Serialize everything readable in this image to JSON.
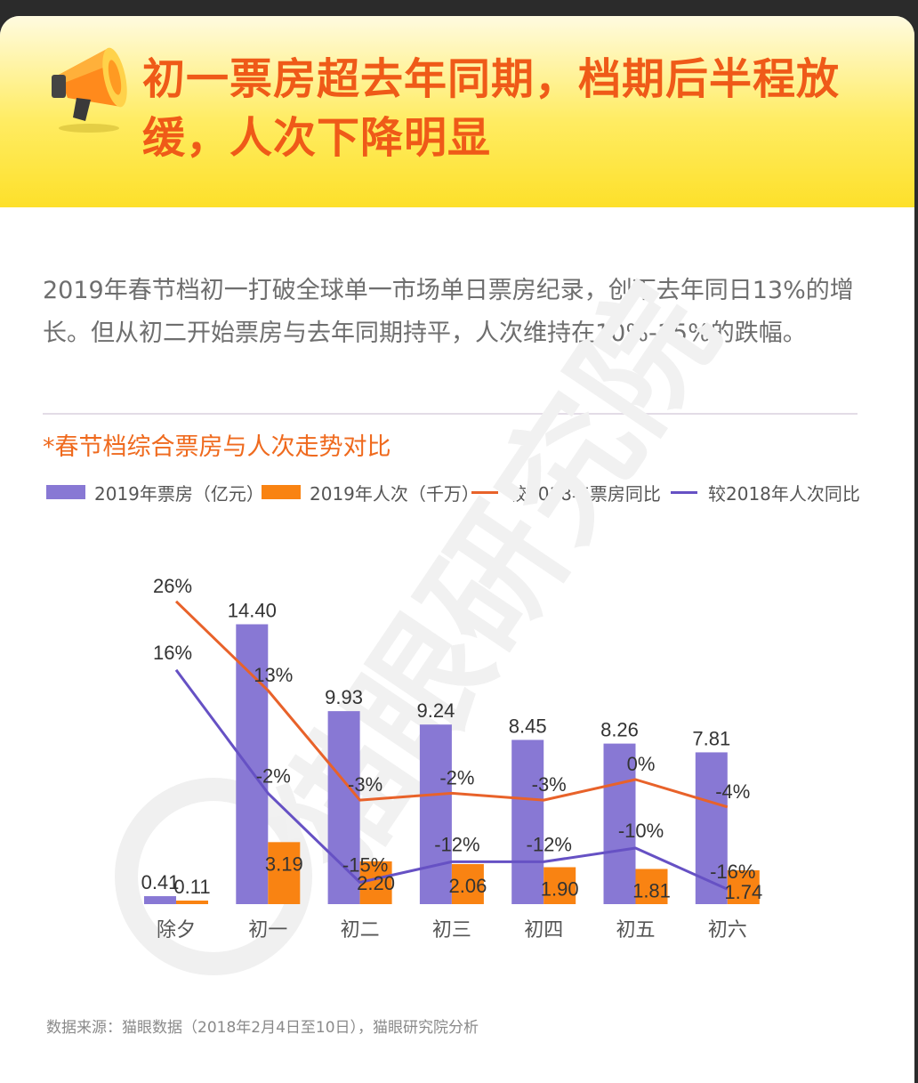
{
  "title": "初一票房超去年同期，档期后半程放缓，人次下降明显",
  "description": "2019年春节档初一打破全球单一市场单日票房纪录，创下去年同日13%的增长。但从初二开始票房与去年同期持平，人次维持在10%-15%的跌幅。",
  "watermark": "猫眼研究院",
  "source": "数据来源：猫眼数据（2018年2月4日至10日），猫眼研究院分析",
  "colors": {
    "box_office_bar": "#8878d4",
    "admissions_bar": "#f98312",
    "box_yoy_line": "#e8622a",
    "adm_yoy_line": "#6651c4",
    "title": "#ef5a18"
  },
  "chart_data": {
    "type": "bar",
    "title": "*春节档综合票房与人次走势对比",
    "categories": [
      "除夕",
      "初一",
      "初二",
      "初三",
      "初四",
      "初五",
      "初六"
    ],
    "series": [
      {
        "name": "2019年票房（亿元）",
        "type": "bar",
        "values": [
          0.41,
          14.4,
          9.93,
          9.24,
          8.45,
          8.26,
          7.81
        ],
        "labels": [
          "0.41",
          "14.40",
          "9.93",
          "9.24",
          "8.45",
          "8.26",
          "7.81"
        ]
      },
      {
        "name": "2019年人次（千万）",
        "type": "bar",
        "values": [
          0.11,
          3.19,
          2.2,
          2.06,
          1.9,
          1.81,
          1.74
        ],
        "labels": [
          "0.11",
          "3.19",
          "2.20",
          "2.06",
          "1.90",
          "1.81",
          "1.74"
        ]
      },
      {
        "name": "较2018年票房同比",
        "type": "line",
        "values": [
          26,
          13,
          -3,
          -2,
          -3,
          0,
          -4
        ],
        "labels": [
          "26%",
          "13%",
          "-3%",
          "-2%",
          "-3%",
          "0%",
          "-4%"
        ]
      },
      {
        "name": "较2018年人次同比",
        "type": "line",
        "values": [
          16,
          -2,
          -15,
          -12,
          -12,
          -10,
          -16
        ],
        "labels": [
          "16%",
          "-2%",
          "-15%",
          "-12%",
          "-12%",
          "-10%",
          "-16%"
        ]
      }
    ],
    "legend_position": "top"
  }
}
